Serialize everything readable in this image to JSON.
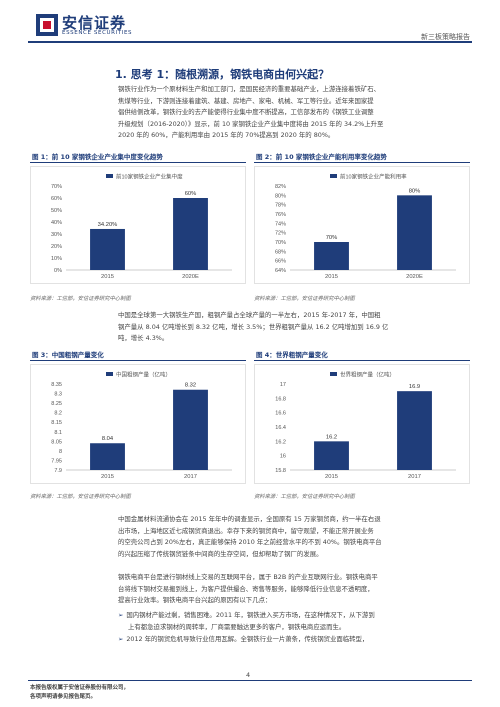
{
  "header": {
    "brand_cn": "安信证券",
    "brand_en": "ESSENCE SECURITIES",
    "report_type": "新三板策略报告"
  },
  "section": {
    "title": "1. 思考 1：随根溯源，钢铁电商由何兴起？"
  },
  "paragraphs": {
    "p1": [
      "钢铁行业作为一个原材料生产和加工部门，是国民经济的重要基础产业，上游连接着铁矿石、",
      "焦煤等行业，下游则连接着建筑、基建、房地产、家电、机械、军工等行业。近年来国家提",
      "倡供给侧改革，钢铁行业的去产能使得行业集中度不断提高，工信部发布的《钢铁工业调整",
      "升级规划（2016-2020）》显示，前 10 家钢铁企业产业集中度将由 2015 年的 34.2%上升至",
      "2020 年的 60%，产能利用率由 2015 年的 70%提高到 2020 年的 80%。"
    ],
    "p2": [
      "中国是全球第一大钢铁生产国，粗钢产量占全球产量的一半左右，2015 年-2017 年，中国粗",
      "钢产量从 8.04 亿吨增长到 8.32 亿吨，增长 3.5%；世界粗钢产量从 16.2 亿吨增加到 16.9 亿",
      "吨，增长 4.3%。"
    ],
    "p3": [
      "中国金属材料流通协会在 2015 年年中的调查显示，全国原有 15 万家钢贸商，约一半在右退",
      "出市场，上海地区近七成钢贸商退出。幸存下来的钢贸商中，留守观望，不能正常开展业务",
      "的空壳公司占到 20%左右，真正能够保持 2010 年之前经营水平的不到 40%。钢铁电商平台",
      "的兴起压缩了传统钢贸链条中间商的生存空间，但却帮助了钢厂的发展。"
    ],
    "p4": [
      "钢铁电商平台是进行钢材线上交易的互联网平台，属于 B2B 的产业互联网行业。钢铁电商平",
      "台将线下钢材交易搬到线上，为客户提供撮合、寄售等服务，能够降低行业信息不透明度，",
      "提高行业效率。钢铁电商平台兴起的原因有以下几点："
    ],
    "bullet1": [
      "国内钢材产能过剩，销售困难。2011 年，钢铁进入买方市场，在这种情况下，从下游到",
      "上有都急迫求钢材的周转率，厂商需要触达更多的客户，钢铁电商应运而生。"
    ],
    "bullet2": "2012 年的钢贸危机导致行业信用瓦解。全钢铁行业一片萧条，传统钢贸业面临转型，"
  },
  "figures": {
    "fig1": {
      "title": "图 1：前 10 家钢铁企业产业集中度变化趋势",
      "source": "资料来源：工信部，安信证券研究中心制图",
      "chart_data": {
        "type": "bar",
        "legend": "前10家钢铁企业产业集中度",
        "categories": [
          "2015",
          "2020E"
        ],
        "values": [
          34.2,
          60
        ],
        "value_labels": [
          "34.20%",
          "60%"
        ],
        "ylim": [
          0,
          70
        ],
        "yticks": [
          "0%",
          "10%",
          "20%",
          "30%",
          "40%",
          "50%",
          "60%",
          "70%"
        ],
        "color": "#1f3d7a"
      }
    },
    "fig2": {
      "title": "图 2：前 10 家钢铁企业产能利用率变化趋势",
      "source": "资料来源：工信部，安信证券研究中心制图",
      "chart_data": {
        "type": "bar",
        "legend": "前10家钢铁企业产能利用率",
        "categories": [
          "2015",
          "2020E"
        ],
        "values": [
          70,
          80
        ],
        "value_labels": [
          "70%",
          "80%"
        ],
        "ylim": [
          64,
          82
        ],
        "yticks": [
          "64%",
          "66%",
          "68%",
          "70%",
          "72%",
          "74%",
          "76%",
          "78%",
          "80%",
          "82%"
        ],
        "color": "#1f3d7a"
      }
    },
    "fig3": {
      "title": "图 3：中国粗钢产量变化",
      "source": "资料来源：工信部，安信证券研究中心制图",
      "chart_data": {
        "type": "bar",
        "legend": "中国粗钢产量（亿吨）",
        "categories": [
          "2015",
          "2017"
        ],
        "values": [
          8.04,
          8.32
        ],
        "value_labels": [
          "8.04",
          "8.32"
        ],
        "ylim": [
          7.9,
          8.35
        ],
        "yticks": [
          "7.9",
          "7.95",
          "8",
          "8.05",
          "8.1",
          "8.15",
          "8.2",
          "8.25",
          "8.3",
          "8.35"
        ],
        "color": "#1f3d7a"
      }
    },
    "fig4": {
      "title": "图 4：世界粗钢产量变化",
      "source": "资料来源：工信部，安信证券研究中心制图",
      "chart_data": {
        "type": "bar",
        "legend": "世界粗钢产量（亿吨）",
        "categories": [
          "2015",
          "2017"
        ],
        "values": [
          16.2,
          16.9
        ],
        "value_labels": [
          "16.2",
          "16.9"
        ],
        "ylim": [
          15.8,
          17
        ],
        "yticks": [
          "15.8",
          "16",
          "16.2",
          "16.4",
          "16.6",
          "16.8",
          "17"
        ],
        "color": "#1f3d7a"
      }
    }
  },
  "footer": {
    "page": "4",
    "line1": "本报告版权属于安信证券股份有限公司，",
    "line2": "各项声明请参见报告尾页。"
  }
}
